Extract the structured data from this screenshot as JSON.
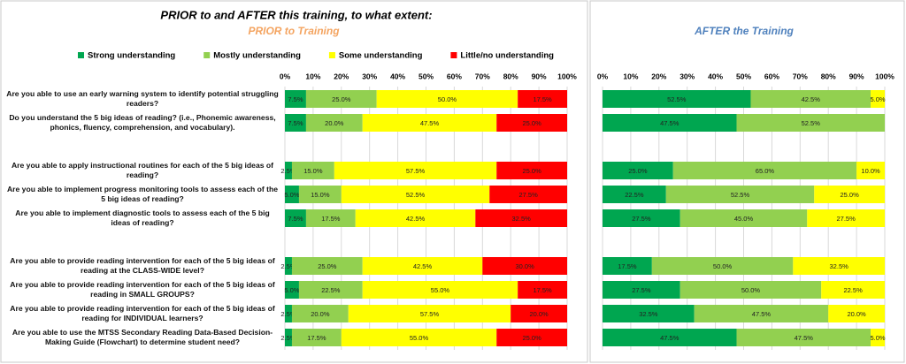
{
  "title": "PRIOR to and AFTER this training, to what extent:",
  "chart_data": [
    {
      "type": "stacked_bar_h",
      "subtitle": "PRIOR to Training",
      "categories": [
        "Are you able to use an early warning system to identify potential struggling readers?",
        "Do you understand the 5 big ideas of reading? (i.e., Phonemic awareness, phonics, fluency, comprehension, and vocabulary).",
        null,
        "Are you able to apply instructional routines for each of the 5 big ideas of reading?",
        "Are you able to implement progress monitoring tools to assess each of the 5 big ideas of reading?",
        "Are you able to implement diagnostic tools to assess each of the 5 big ideas of reading?",
        null,
        "Are you able to provide reading intervention for each of the 5 big ideas of reading at the CLASS-WIDE level?",
        "Are you able to provide reading intervention for each of the 5 big ideas of reading in SMALL GROUPS?",
        "Are you able to provide reading intervention for each of the 5 big ideas of reading for INDIVIDUAL learners?",
        "Are you able to use the MTSS Secondary Reading Data-Based Decision-Making Guide (Flowchart) to determine student need?"
      ],
      "series": [
        {
          "name": "Strong understanding",
          "color": "#00a650",
          "values": [
            7.5,
            7.5,
            null,
            2.5,
            5,
            7.5,
            null,
            2.5,
            5,
            2.5,
            2.5
          ],
          "value_labels": [
            "7.5%",
            "7.5%",
            null,
            "2.5%",
            "5.0%",
            "7.5%",
            null,
            "2.5%",
            "5.0%",
            "2.5%",
            "2.5%"
          ]
        },
        {
          "name": "Mostly understanding",
          "color": "#92d050",
          "values": [
            25,
            20,
            null,
            15,
            15,
            17.5,
            null,
            25,
            22.5,
            20,
            17.5
          ],
          "value_labels": [
            "25.0%",
            "20.0%",
            null,
            "15.0%",
            "15.0%",
            "17.5%",
            null,
            "25.0%",
            "22.5%",
            "20.0%",
            "17.5%"
          ]
        },
        {
          "name": "Some understanding",
          "color": "#ffff00",
          "values": [
            50,
            47.5,
            null,
            57.5,
            52.5,
            42.5,
            null,
            42.5,
            55,
            57.5,
            55
          ],
          "value_labels": [
            "50.0%",
            "47.5%",
            null,
            "57.5%",
            "52.5%",
            "42.5%",
            null,
            "42.5%",
            "55.0%",
            "57.5%",
            "55.0%"
          ]
        },
        {
          "name": "Little/no understanding",
          "color": "#ff0000",
          "values": [
            17.5,
            25,
            null,
            25,
            27.5,
            32.5,
            null,
            30,
            17.5,
            20,
            25
          ],
          "value_labels": [
            "17.5%",
            "25.0%",
            null,
            "25.0%",
            "27.5%",
            "32.5%",
            null,
            "30.0%",
            "17.5%",
            "20.0%",
            "25.0%"
          ]
        }
      ],
      "xlim": [
        0,
        100
      ],
      "xticks": [
        {
          "value": 0,
          "label": "0%"
        },
        {
          "value": 10,
          "label": "10%"
        },
        {
          "value": 20,
          "label": "20%"
        },
        {
          "value": 30,
          "label": "30%"
        },
        {
          "value": 40,
          "label": "40%"
        },
        {
          "value": 50,
          "label": "50%"
        },
        {
          "value": 60,
          "label": "60%"
        },
        {
          "value": 70,
          "label": "70%"
        },
        {
          "value": 80,
          "label": "80%"
        },
        {
          "value": 90,
          "label": "90%"
        },
        {
          "value": 100,
          "label": "100%"
        }
      ],
      "grid": true
    },
    {
      "type": "stacked_bar_h",
      "subtitle": "AFTER the Training",
      "series": [
        {
          "color": "#00a650",
          "values": [
            52.5,
            47.5,
            null,
            25,
            22.5,
            27.5,
            null,
            17.5,
            27.5,
            32.5,
            47.5
          ],
          "value_labels": [
            "52.5%",
            "47.5%",
            null,
            "25.0%",
            "22.5%",
            "27.5%",
            null,
            "17.5%",
            "27.5%",
            "32.5%",
            "47.5%"
          ]
        },
        {
          "color": "#92d050",
          "values": [
            42.5,
            52.5,
            null,
            65,
            52.5,
            45,
            null,
            50,
            50,
            47.5,
            47.5
          ],
          "value_labels": [
            "42.5%",
            "52.5%",
            null,
            "65.0%",
            "52.5%",
            "45.0%",
            null,
            "50.0%",
            "50.0%",
            "47.5%",
            "47.5%"
          ]
        },
        {
          "color": "#ffff00",
          "values": [
            5,
            null,
            null,
            10,
            25,
            27.5,
            null,
            32.5,
            22.5,
            20,
            5
          ],
          "value_labels": [
            "5.0%",
            null,
            null,
            "10.0%",
            "25.0%",
            "27.5%",
            null,
            "32.5%",
            "22.5%",
            "20.0%",
            "5.0%"
          ]
        }
      ],
      "xlim": [
        0,
        100
      ],
      "xticks": [
        {
          "value": 0,
          "label": "0%"
        },
        {
          "value": 10,
          "label": "10%"
        },
        {
          "value": 20,
          "label": "20%"
        },
        {
          "value": 30,
          "label": "30%"
        },
        {
          "value": 40,
          "label": "40%"
        },
        {
          "value": 50,
          "label": "50%"
        },
        {
          "value": 60,
          "label": "60%"
        },
        {
          "value": 70,
          "label": "70%"
        },
        {
          "value": 80,
          "label": "80%"
        },
        {
          "value": 90,
          "label": "90%"
        },
        {
          "value": 100,
          "label": "100%"
        }
      ],
      "grid": true
    }
  ]
}
